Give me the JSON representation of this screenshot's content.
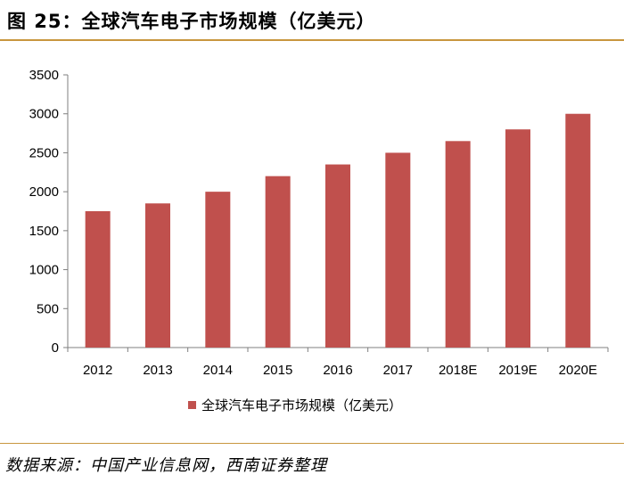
{
  "figure": {
    "title": "图 25：全球汽车电子市场规模（亿美元）",
    "source": "数据来源：中国产业信息网，西南证券整理"
  },
  "chart_data": {
    "type": "bar",
    "title": "",
    "xlabel": "",
    "ylabel": "",
    "categories": [
      "2012",
      "2013",
      "2014",
      "2015",
      "2016",
      "2017",
      "2018E",
      "2019E",
      "2020E"
    ],
    "series": [
      {
        "name": "全球汽车电子市场规模（亿美元）",
        "color": "#c0504d",
        "values": [
          1750,
          1850,
          2000,
          2200,
          2350,
          2500,
          2650,
          2800,
          3000
        ]
      }
    ],
    "ylim": [
      0,
      3500
    ],
    "yticks": [
      0,
      500,
      1000,
      1500,
      2000,
      2500,
      3000,
      3500
    ],
    "grid": false,
    "legend_position": "bottom"
  }
}
